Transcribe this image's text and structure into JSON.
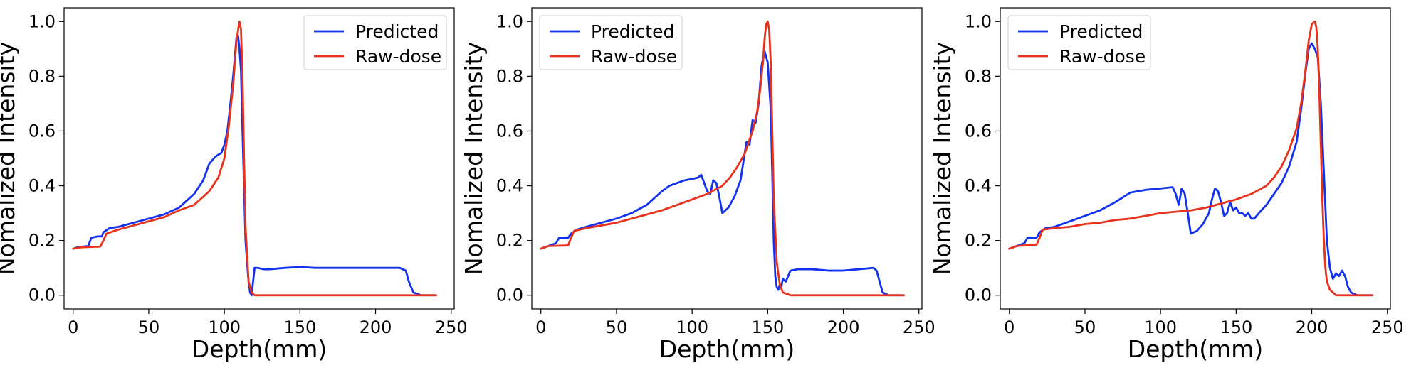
{
  "chart_data": [
    {
      "type": "line",
      "xlabel": "Depth(mm)",
      "ylabel": "Nomalized Intensity",
      "xlim": [
        -6,
        252
      ],
      "ylim": [
        -0.05,
        1.05
      ],
      "xticks": [
        0,
        50,
        100,
        150,
        200,
        250
      ],
      "yticks": [
        0.0,
        0.2,
        0.4,
        0.6,
        0.8,
        1.0
      ],
      "legend_position": "upper right",
      "series": [
        {
          "name": "Predicted",
          "color": "#1232f0",
          "x": [
            0,
            3,
            10,
            12,
            16,
            19,
            20,
            24,
            30,
            40,
            50,
            60,
            70,
            80,
            86,
            90,
            93,
            95,
            98,
            100,
            102,
            104,
            106,
            108,
            109,
            110,
            111,
            112,
            113,
            114,
            115,
            116,
            117,
            118,
            119,
            120,
            122,
            126,
            130,
            140,
            150,
            160,
            180,
            200,
            216,
            220,
            222,
            225,
            230,
            240
          ],
          "y": [
            0.17,
            0.175,
            0.18,
            0.21,
            0.215,
            0.215,
            0.23,
            0.245,
            0.25,
            0.265,
            0.28,
            0.295,
            0.32,
            0.37,
            0.42,
            0.48,
            0.5,
            0.51,
            0.52,
            0.55,
            0.6,
            0.7,
            0.81,
            0.94,
            0.95,
            0.9,
            0.82,
            0.6,
            0.4,
            0.2,
            0.12,
            0.05,
            0.01,
            0.0,
            0.05,
            0.1,
            0.1,
            0.095,
            0.095,
            0.1,
            0.103,
            0.1,
            0.1,
            0.1,
            0.1,
            0.09,
            0.05,
            0.01,
            0.0,
            0.0
          ]
        },
        {
          "name": "Raw-dose",
          "color": "#e8321c",
          "x": [
            0,
            5,
            18,
            20,
            22,
            30,
            40,
            50,
            60,
            70,
            80,
            90,
            96,
            100,
            103,
            106,
            108,
            110,
            111,
            112,
            113,
            114,
            116,
            118,
            120,
            125,
            150,
            200,
            240
          ],
          "y": [
            0.17,
            0.175,
            0.178,
            0.2,
            0.225,
            0.24,
            0.255,
            0.27,
            0.285,
            0.31,
            0.33,
            0.38,
            0.43,
            0.5,
            0.62,
            0.78,
            0.93,
            1.0,
            0.97,
            0.8,
            0.5,
            0.25,
            0.05,
            0.01,
            0.0,
            0.0,
            0.0,
            0.0,
            0.0
          ]
        }
      ]
    },
    {
      "type": "line",
      "xlabel": "Depth(mm)",
      "ylabel": "Nomalized Intensity",
      "xlim": [
        -6,
        252
      ],
      "ylim": [
        -0.05,
        1.05
      ],
      "xticks": [
        0,
        50,
        100,
        150,
        200,
        250
      ],
      "yticks": [
        0.0,
        0.2,
        0.4,
        0.6,
        0.8,
        1.0
      ],
      "legend_position": "upper left",
      "series": [
        {
          "name": "Predicted",
          "color": "#1232f0",
          "x": [
            0,
            5,
            10,
            12,
            18,
            20,
            24,
            30,
            40,
            50,
            60,
            70,
            80,
            85,
            90,
            95,
            100,
            104,
            106,
            108,
            110,
            112,
            114,
            116,
            118,
            120,
            124,
            128,
            132,
            136,
            138,
            140,
            142,
            144,
            146,
            148,
            150,
            152,
            153,
            154,
            155,
            156,
            157,
            158,
            159,
            160,
            162,
            165,
            170,
            180,
            190,
            200,
            210,
            220,
            222,
            224,
            226,
            230,
            240
          ],
          "y": [
            0.17,
            0.18,
            0.19,
            0.21,
            0.21,
            0.225,
            0.24,
            0.25,
            0.265,
            0.28,
            0.3,
            0.33,
            0.38,
            0.4,
            0.41,
            0.42,
            0.425,
            0.43,
            0.44,
            0.41,
            0.38,
            0.37,
            0.42,
            0.41,
            0.36,
            0.3,
            0.32,
            0.36,
            0.42,
            0.56,
            0.55,
            0.64,
            0.63,
            0.7,
            0.84,
            0.89,
            0.85,
            0.68,
            0.45,
            0.2,
            0.07,
            0.03,
            0.02,
            0.04,
            0.03,
            0.06,
            0.05,
            0.09,
            0.095,
            0.095,
            0.09,
            0.09,
            0.095,
            0.1,
            0.09,
            0.05,
            0.01,
            0.0,
            0.0
          ]
        },
        {
          "name": "Raw-dose",
          "color": "#e8321c",
          "x": [
            0,
            5,
            18,
            20,
            22,
            30,
            40,
            50,
            60,
            70,
            80,
            90,
            100,
            110,
            120,
            125,
            130,
            135,
            140,
            143,
            145,
            147,
            148,
            149,
            150,
            151,
            152,
            153,
            154,
            156,
            158,
            160,
            165,
            200,
            240
          ],
          "y": [
            0.17,
            0.18,
            0.182,
            0.21,
            0.235,
            0.245,
            0.255,
            0.265,
            0.28,
            0.295,
            0.31,
            0.33,
            0.35,
            0.37,
            0.4,
            0.43,
            0.47,
            0.52,
            0.6,
            0.67,
            0.75,
            0.86,
            0.94,
            0.99,
            1.0,
            0.97,
            0.85,
            0.6,
            0.35,
            0.12,
            0.04,
            0.01,
            0.0,
            0.0,
            0.0
          ]
        }
      ]
    },
    {
      "type": "line",
      "xlabel": "Depth(mm)",
      "ylabel": "Nomalized Intensity",
      "xlim": [
        -6,
        252
      ],
      "ylim": [
        -0.05,
        1.05
      ],
      "xticks": [
        0,
        50,
        100,
        150,
        200,
        250
      ],
      "yticks": [
        0.0,
        0.2,
        0.4,
        0.6,
        0.8,
        1.0
      ],
      "legend_position": "upper left",
      "series": [
        {
          "name": "Predicted",
          "color": "#1232f0",
          "x": [
            0,
            5,
            10,
            12,
            18,
            20,
            24,
            30,
            40,
            50,
            60,
            70,
            80,
            90,
            100,
            108,
            110,
            112,
            114,
            116,
            118,
            120,
            124,
            128,
            132,
            134,
            136,
            138,
            140,
            142,
            144,
            146,
            148,
            150,
            152,
            154,
            156,
            158,
            160,
            162,
            165,
            170,
            175,
            180,
            185,
            190,
            193,
            196,
            198,
            200,
            202,
            204,
            206,
            208,
            210,
            212,
            214,
            216,
            218,
            220,
            222,
            224,
            226,
            230,
            240
          ],
          "y": [
            0.17,
            0.18,
            0.19,
            0.21,
            0.21,
            0.23,
            0.245,
            0.25,
            0.27,
            0.29,
            0.31,
            0.34,
            0.375,
            0.385,
            0.39,
            0.395,
            0.37,
            0.33,
            0.39,
            0.37,
            0.3,
            0.225,
            0.235,
            0.26,
            0.3,
            0.35,
            0.39,
            0.38,
            0.34,
            0.29,
            0.3,
            0.34,
            0.31,
            0.32,
            0.3,
            0.3,
            0.29,
            0.3,
            0.28,
            0.28,
            0.3,
            0.33,
            0.37,
            0.41,
            0.47,
            0.56,
            0.68,
            0.82,
            0.9,
            0.92,
            0.9,
            0.87,
            0.7,
            0.45,
            0.2,
            0.1,
            0.06,
            0.08,
            0.07,
            0.09,
            0.07,
            0.03,
            0.01,
            0.0,
            0.0
          ]
        },
        {
          "name": "Raw-dose",
          "color": "#e8321c",
          "x": [
            0,
            5,
            18,
            20,
            22,
            30,
            40,
            50,
            60,
            70,
            80,
            90,
            100,
            110,
            120,
            130,
            140,
            150,
            160,
            170,
            175,
            180,
            185,
            190,
            193,
            196,
            198,
            200,
            202,
            203,
            204,
            205,
            206,
            207,
            208,
            209,
            210,
            212,
            214,
            216,
            220,
            240
          ],
          "y": [
            0.17,
            0.18,
            0.185,
            0.21,
            0.24,
            0.245,
            0.25,
            0.26,
            0.265,
            0.275,
            0.28,
            0.29,
            0.3,
            0.305,
            0.31,
            0.32,
            0.335,
            0.35,
            0.37,
            0.4,
            0.43,
            0.47,
            0.53,
            0.61,
            0.7,
            0.83,
            0.93,
            0.99,
            1.0,
            0.98,
            0.9,
            0.75,
            0.55,
            0.35,
            0.2,
            0.1,
            0.05,
            0.02,
            0.01,
            0.0,
            0.0,
            0.0
          ]
        }
      ]
    }
  ]
}
